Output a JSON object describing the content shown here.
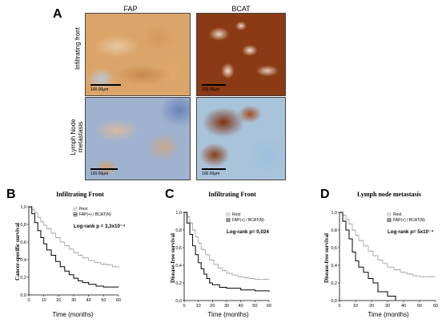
{
  "panel_a": {
    "letter": "A",
    "col_headers": [
      "FAP",
      "BCAT"
    ],
    "row_labels": [
      "Infiltrating front",
      "Lymph Node\nmetastasis"
    ],
    "scale_label": "100.00µm"
  },
  "chart_data": [
    {
      "type": "line",
      "letter": "B",
      "title": "Infiltrating Front",
      "xlabel": "Time (months)",
      "ylabel": "Cancer-specific survival",
      "xlim": [
        0,
        60
      ],
      "ylim": [
        0,
        1.0
      ],
      "x_ticks": [
        "0",
        "10",
        "20",
        "30",
        "40",
        "50",
        "60"
      ],
      "y_ticks": [
        "0,0",
        "0,2",
        "0,4",
        "0,6",
        "0,8",
        "1,0"
      ],
      "annotation": "Log-rank p = 3,3x10⁻⁴",
      "legend": [
        "Rest",
        "FAP(+) / BCAT(N)"
      ],
      "legend_position": "top-right",
      "series": [
        {
          "name": "Rest",
          "color": "#a8a8a8",
          "x": [
            0,
            2,
            4,
            6,
            8,
            10,
            12,
            15,
            18,
            21,
            24,
            27,
            30,
            33,
            36,
            40,
            44,
            48,
            52,
            56,
            60
          ],
          "y": [
            1.0,
            0.97,
            0.93,
            0.88,
            0.83,
            0.79,
            0.75,
            0.7,
            0.65,
            0.6,
            0.56,
            0.52,
            0.48,
            0.45,
            0.42,
            0.39,
            0.37,
            0.35,
            0.34,
            0.32,
            0.31
          ]
        },
        {
          "name": "FAP(+) / BCAT(N)",
          "color": "#000000",
          "x": [
            0,
            2,
            4,
            6,
            8,
            10,
            12,
            15,
            18,
            21,
            24,
            27,
            30,
            33,
            36,
            40,
            45,
            50,
            60
          ],
          "y": [
            1.0,
            0.92,
            0.82,
            0.73,
            0.65,
            0.58,
            0.51,
            0.45,
            0.38,
            0.32,
            0.27,
            0.23,
            0.19,
            0.16,
            0.14,
            0.12,
            0.1,
            0.09,
            0.09
          ]
        }
      ]
    },
    {
      "type": "line",
      "letter": "C",
      "title": "Infiltrating Front",
      "xlabel": "Time (months)",
      "ylabel": "Disease-free survival",
      "xlim": [
        0,
        60
      ],
      "ylim": [
        0,
        1.0
      ],
      "x_ticks": [
        "0",
        "10",
        "20",
        "30",
        "40",
        "50",
        "60"
      ],
      "y_ticks": [
        "0,0",
        "0,2",
        "0,4",
        "0,6",
        "0,8",
        "1,0"
      ],
      "annotation": "Log-rank p= 0,024",
      "legend": [
        "Rest",
        "FAP(+) / BCAT(N)"
      ],
      "legend_position": "top-right",
      "series": [
        {
          "name": "Rest",
          "color": "#a8a8a8",
          "x": [
            0,
            2,
            4,
            6,
            8,
            10,
            12,
            15,
            18,
            21,
            24,
            27,
            30,
            34,
            38,
            42,
            46,
            50,
            55,
            60
          ],
          "y": [
            1.0,
            0.95,
            0.88,
            0.8,
            0.72,
            0.65,
            0.58,
            0.52,
            0.46,
            0.41,
            0.37,
            0.34,
            0.31,
            0.29,
            0.27,
            0.26,
            0.25,
            0.24,
            0.24,
            0.24
          ]
        },
        {
          "name": "FAP(+) / BCAT(N)",
          "color": "#000000",
          "x": [
            0,
            2,
            4,
            6,
            8,
            10,
            12,
            14,
            16,
            18,
            20,
            25,
            30,
            40,
            50,
            60
          ],
          "y": [
            1.0,
            0.88,
            0.75,
            0.62,
            0.52,
            0.43,
            0.36,
            0.3,
            0.25,
            0.2,
            0.18,
            0.15,
            0.14,
            0.12,
            0.11,
            0.1
          ]
        }
      ]
    },
    {
      "type": "line",
      "letter": "D",
      "title": "Lymph node metastasis",
      "xlabel": "Time (months)",
      "ylabel": "Disease-free survival",
      "xlim": [
        0,
        60
      ],
      "ylim": [
        0,
        1.0
      ],
      "x_ticks": [
        "0",
        "10",
        "20",
        "30",
        "40",
        "50",
        "60"
      ],
      "y_ticks": [
        "0,0",
        "0,2",
        "0,4",
        "0,6",
        "0,8",
        "1,0"
      ],
      "annotation": "Log-rank p= 5x10⁻⁴",
      "legend": [
        "Rest",
        "FAP(+) / BCAT(N)"
      ],
      "legend_position": "top-right",
      "series": [
        {
          "name": "Rest",
          "color": "#a8a8a8",
          "x": [
            0,
            2,
            4,
            6,
            8,
            10,
            12,
            15,
            18,
            21,
            24,
            27,
            30,
            34,
            38,
            42,
            46,
            50,
            55,
            60
          ],
          "y": [
            1.0,
            0.97,
            0.92,
            0.87,
            0.8,
            0.74,
            0.68,
            0.62,
            0.56,
            0.51,
            0.46,
            0.42,
            0.38,
            0.35,
            0.32,
            0.3,
            0.28,
            0.27,
            0.27,
            0.27
          ]
        },
        {
          "name": "FAP(+) / BCAT(N)",
          "color": "#000000",
          "x": [
            0,
            2,
            4,
            6,
            8,
            10,
            12,
            15,
            18,
            21,
            24,
            28,
            30,
            35
          ],
          "y": [
            1.0,
            0.9,
            0.8,
            0.7,
            0.55,
            0.45,
            0.38,
            0.32,
            0.25,
            0.2,
            0.1,
            0.1,
            0.05,
            0.0
          ]
        }
      ]
    }
  ]
}
